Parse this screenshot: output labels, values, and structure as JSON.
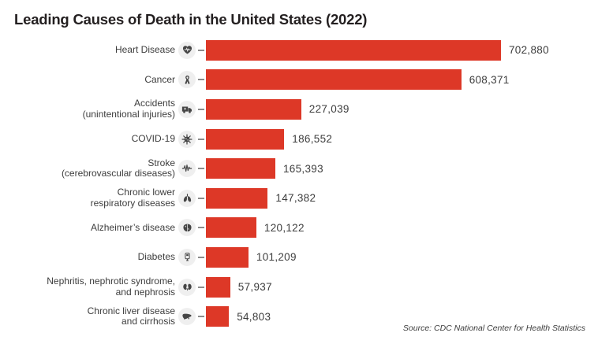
{
  "title": "Leading Causes of Death in the United States (2022)",
  "source": "Source: CDC National Center for Health Statistics",
  "colors": {
    "background": "#FFFFFF",
    "bar": "#DD3827",
    "title_text": "#231F20",
    "label_text": "#3D3D3D",
    "icon_circle_bg": "#EFEFEF",
    "icon_glyph": "#454545",
    "tick": "#8C8C8C"
  },
  "chart_data": {
    "type": "bar",
    "orientation": "horizontal",
    "title": "Leading Causes of Death in the United States (2022)",
    "xlabel": "",
    "ylabel": "",
    "xlim": [
      0,
      750000
    ],
    "grid": false,
    "legend": false,
    "value_labels_shown": true,
    "source": "Source: CDC National Center for Health Statistics",
    "categories": [
      "Heart Disease",
      "Cancer",
      "Accidents (unintentional injuries)",
      "COVID-19",
      "Stroke (cerebrovascular diseases)",
      "Chronic lower respiratory diseases",
      "Alzheimer’s disease",
      "Diabetes",
      "Nephritis, nephrotic syndrome, and nephrosis",
      "Chronic liver disease and cirrhosis"
    ],
    "values": [
      702880,
      608371,
      227039,
      186552,
      165393,
      147382,
      120122,
      101209,
      57937,
      54803
    ],
    "rows": [
      {
        "label": "Heart Disease",
        "label_lines": [
          "Heart Disease"
        ],
        "icon": "heart-pulse-icon",
        "value": 702880,
        "value_label": "702,880"
      },
      {
        "label": "Cancer",
        "label_lines": [
          "Cancer"
        ],
        "icon": "cancer-ribbon-icon",
        "value": 608371,
        "value_label": "608,371"
      },
      {
        "label": "Accidents (unintentional injuries)",
        "label_lines": [
          "Accidents",
          "(unintentional injuries)"
        ],
        "icon": "ambulance-icon",
        "value": 227039,
        "value_label": "227,039"
      },
      {
        "label": "COVID-19",
        "label_lines": [
          "COVID-19"
        ],
        "icon": "virus-icon",
        "value": 186552,
        "value_label": "186,552"
      },
      {
        "label": "Stroke (cerebrovascular diseases)",
        "label_lines": [
          "Stroke",
          "(cerebrovascular diseases)"
        ],
        "icon": "ekg-pulse-icon",
        "value": 165393,
        "value_label": "165,393"
      },
      {
        "label": "Chronic lower respiratory diseases",
        "label_lines": [
          "Chronic lower",
          "respiratory diseases"
        ],
        "icon": "lungs-icon",
        "value": 147382,
        "value_label": "147,382"
      },
      {
        "label": "Alzheimer’s disease",
        "label_lines": [
          "Alzheimer’s disease"
        ],
        "icon": "brain-icon",
        "value": 120122,
        "value_label": "120,122"
      },
      {
        "label": "Diabetes",
        "label_lines": [
          "Diabetes"
        ],
        "icon": "glucose-meter-icon",
        "value": 101209,
        "value_label": "101,209"
      },
      {
        "label": "Nephritis, nephrotic syndrome, and nephrosis",
        "label_lines": [
          "Nephritis, nephrotic syndrome,",
          "and nephrosis"
        ],
        "icon": "kidneys-icon",
        "value": 57937,
        "value_label": "57,937"
      },
      {
        "label": "Chronic liver disease and cirrhosis",
        "label_lines": [
          "Chronic liver disease",
          "and cirrhosis"
        ],
        "icon": "liver-icon",
        "value": 54803,
        "value_label": "54,803"
      }
    ]
  }
}
